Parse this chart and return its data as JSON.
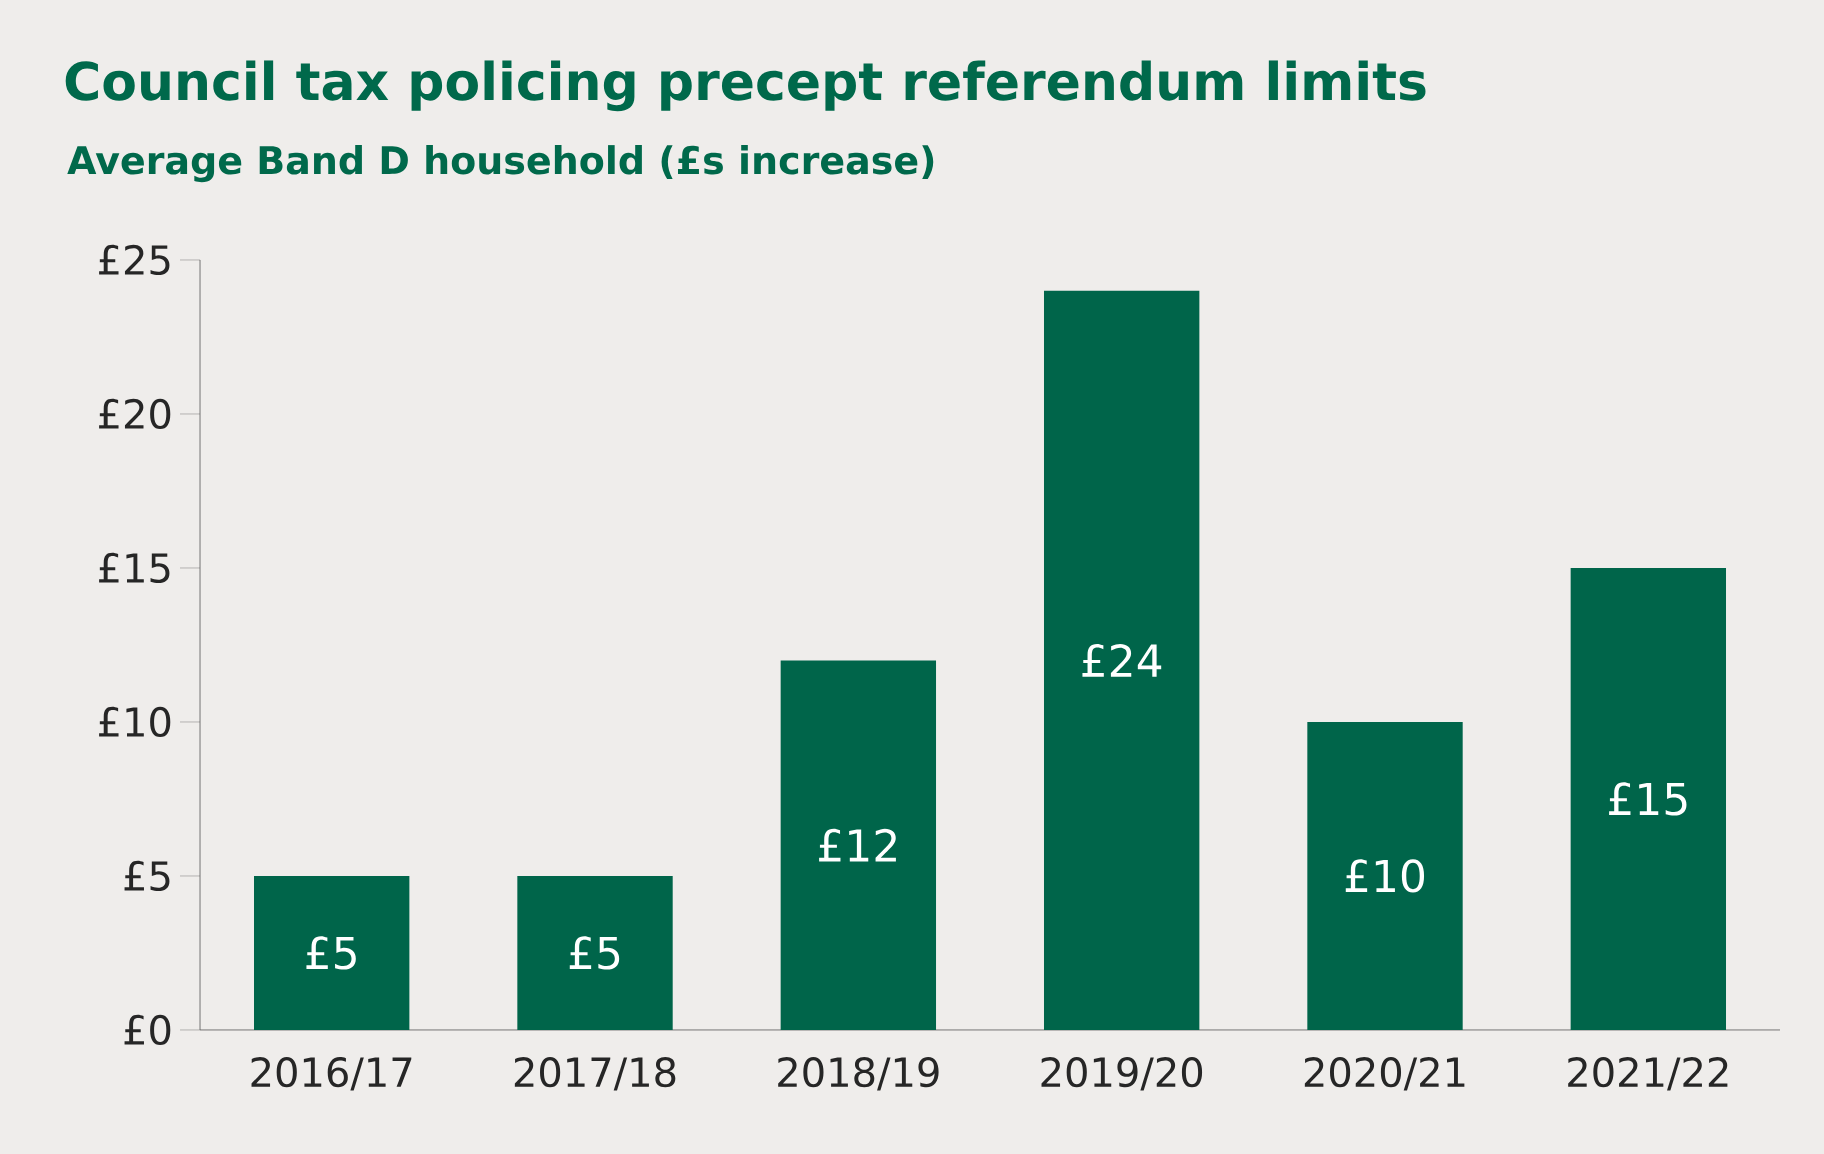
{
  "chart_data": {
    "type": "bar",
    "title": "Council tax policing precept referendum limits",
    "subtitle": "Average Band D household (£s increase)",
    "categories": [
      "2016/17",
      "2017/18",
      "2018/19",
      "2019/20",
      "2020/21",
      "2021/22"
    ],
    "values": [
      5,
      5,
      12,
      24,
      10,
      15
    ],
    "value_labels": [
      "£5",
      "£5",
      "£12",
      "£24",
      "£10",
      "£15"
    ],
    "color": "#00654a",
    "ylim": [
      0,
      25
    ],
    "yticks": [
      {
        "value": 0,
        "label": "£0"
      },
      {
        "value": 5,
        "label": "£5"
      },
      {
        "value": 10,
        "label": "£10"
      },
      {
        "value": 15,
        "label": "£15"
      },
      {
        "value": 20,
        "label": "£20"
      },
      {
        "value": 25,
        "label": "£25"
      }
    ],
    "grid": false
  }
}
